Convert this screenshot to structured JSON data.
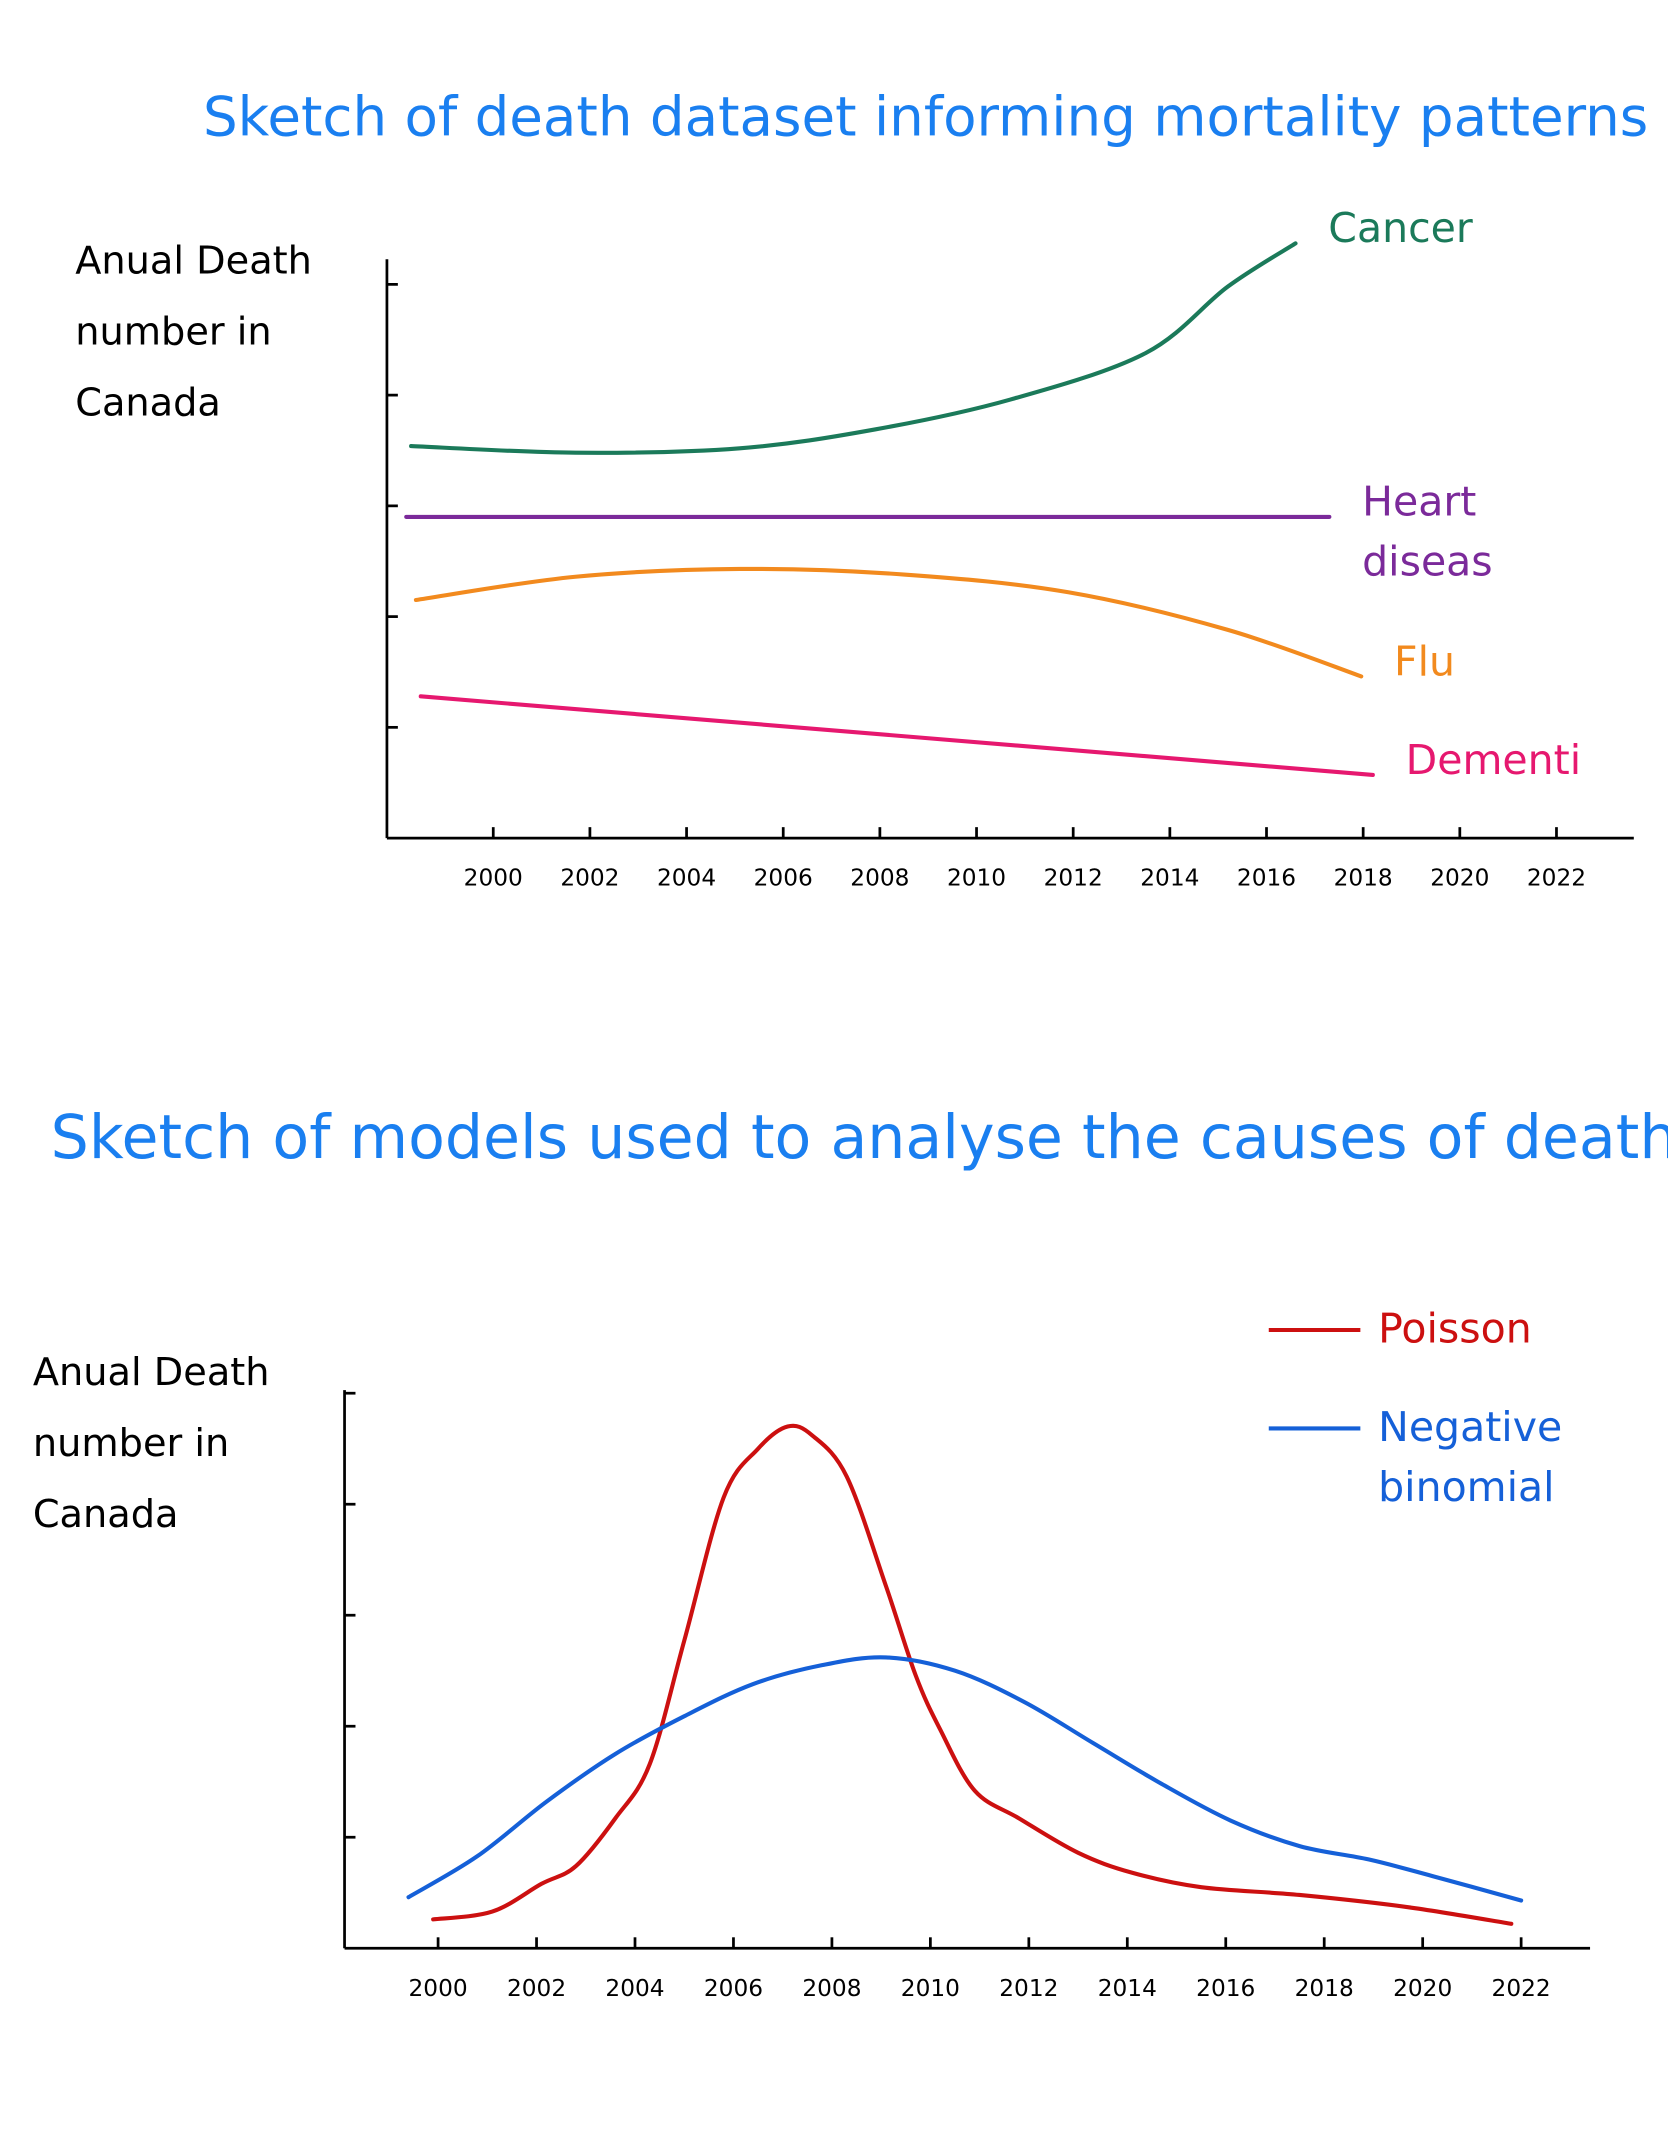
{
  "chart_data": [
    {
      "type": "line",
      "title": "Sketch of death dataset informing mortality patterns",
      "y_label": "Anual Death number in Canada",
      "legend": "direct",
      "xlim": [
        1997.8,
        2023.6
      ],
      "xticks": [
        2000,
        2002,
        2004,
        2006,
        2008,
        2010,
        2012,
        2014,
        2016,
        2018,
        2020,
        2022
      ],
      "ylim": [
        0,
        5.4
      ],
      "yticks": [
        1,
        2,
        3,
        4,
        5
      ],
      "series": [
        {
          "name": "Cancer",
          "color": "#1b7a5a",
          "x": [
            1998.3,
            2001.7,
            2005.1,
            2007.9,
            2010.7,
            2013.5,
            2015.2,
            2016.6
          ],
          "values": [
            3.54,
            3.48,
            3.52,
            3.69,
            3.96,
            4.38,
            4.98,
            5.37
          ]
        },
        {
          "name": "Heart diseas",
          "color": "#7b2a9a",
          "x": [
            1998.2,
            2017.3
          ],
          "values": [
            2.9,
            2.9
          ]
        },
        {
          "name": "Flu",
          "color": "#f28a1e",
          "x": [
            1998.4,
            2001.7,
            2005.1,
            2008.5,
            2011.9,
            2015.2,
            2017.96
          ],
          "values": [
            2.15,
            2.36,
            2.43,
            2.38,
            2.22,
            1.88,
            1.46
          ]
        },
        {
          "name": "Dementia",
          "color": "#e6186f",
          "x": [
            1998.5,
            2018.2
          ],
          "values": [
            1.28,
            0.57
          ]
        }
      ]
    },
    {
      "type": "line",
      "title": "Sketch of models used to analyse the causes of death",
      "y_label": "Anual Death number in Canada",
      "legend": "upper right",
      "xlim": [
        1998.1,
        2023.4
      ],
      "xticks": [
        2000,
        2002,
        2004,
        2006,
        2008,
        2010,
        2012,
        2014,
        2016,
        2018,
        2020,
        2022
      ],
      "ylim": [
        0,
        5.2
      ],
      "yticks": [
        1,
        2,
        3,
        4,
        5
      ],
      "series": [
        {
          "name": "Poisson",
          "color": "#cc1010",
          "x": [
            1999.9,
            2001.1,
            2002.1,
            2002.8,
            2003.6,
            2004.3,
            2005.0,
            2005.8,
            2006.5,
            2007.1,
            2007.6,
            2008.3,
            2009.1,
            2009.7,
            2010.2,
            2010.9,
            2011.8,
            2013.0,
            2014.1,
            2015.5,
            2017.5,
            2019.7,
            2021.8
          ],
          "values": [
            0.26,
            0.33,
            0.58,
            0.74,
            1.17,
            1.66,
            2.77,
            4.06,
            4.5,
            4.7,
            4.62,
            4.25,
            3.26,
            2.46,
            1.97,
            1.42,
            1.17,
            0.86,
            0.68,
            0.55,
            0.48,
            0.37,
            0.22
          ]
        },
        {
          "name": "Negative binomial",
          "color": "#1560d8",
          "x": [
            1999.4,
            2000.8,
            2002.2,
            2003.6,
            2005.0,
            2006.4,
            2007.8,
            2009.1,
            2010.5,
            2011.9,
            2013.3,
            2014.7,
            2016.1,
            2017.5,
            2018.9,
            2020.2,
            2022.0
          ],
          "values": [
            0.46,
            0.83,
            1.32,
            1.75,
            2.09,
            2.38,
            2.55,
            2.62,
            2.5,
            2.22,
            1.85,
            1.48,
            1.15,
            0.92,
            0.8,
            0.65,
            0.43
          ]
        }
      ]
    }
  ]
}
